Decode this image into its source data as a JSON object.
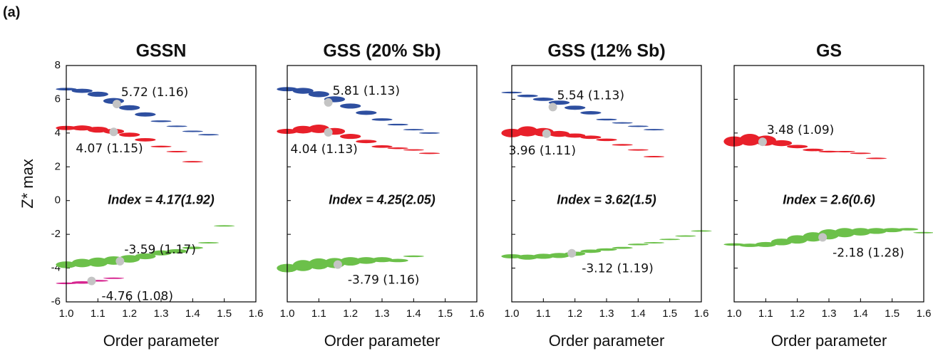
{
  "panel_label": "(a)",
  "chart_data": [
    {
      "type": "band",
      "title": "GSSN",
      "xlabel": "Order parameter",
      "ylabel": "Z* max",
      "annotation": "Index = 4.17(1.92)",
      "xlim": [
        1.0,
        1.6
      ],
      "ylim": [
        -6,
        8
      ],
      "yticklabels": true,
      "xticks": [
        {
          "value": 1.0,
          "label": "1.0"
        },
        {
          "value": 1.1,
          "label": "1.1"
        },
        {
          "value": 1.2,
          "label": "1.2"
        },
        {
          "value": 1.3,
          "label": "1.3"
        },
        {
          "value": 1.4,
          "label": "1.4"
        },
        {
          "value": 1.5,
          "label": "1.5"
        },
        {
          "value": 1.6,
          "label": "1.6"
        }
      ],
      "yticks": [
        8,
        6,
        4,
        2,
        0,
        -2,
        -4,
        -6
      ],
      "series": [
        {
          "color": "#2e4fa0",
          "x": [
            1.0,
            1.05,
            1.1,
            1.15,
            1.2,
            1.25,
            1.3,
            1.35,
            1.4,
            1.45
          ],
          "values": [
            6.6,
            6.5,
            6.3,
            5.9,
            5.5,
            5.1,
            4.7,
            4.4,
            4.1,
            3.9
          ],
          "thickness": [
            0.15,
            0.25,
            0.3,
            0.35,
            0.3,
            0.25,
            0.1,
            0.08,
            0.06,
            0.05
          ],
          "mean_x": 1.16,
          "mean": 5.72,
          "mean_label": "5.72 (1.16)",
          "label_position": "above-right"
        },
        {
          "color": "#e8202a",
          "x": [
            1.0,
            1.05,
            1.1,
            1.15,
            1.2,
            1.25,
            1.3,
            1.35,
            1.4
          ],
          "values": [
            4.3,
            4.3,
            4.2,
            4.1,
            3.9,
            3.6,
            3.2,
            2.9,
            2.3
          ],
          "thickness": [
            0.25,
            0.3,
            0.35,
            0.3,
            0.25,
            0.2,
            0.1,
            0.08,
            0.06
          ],
          "mean_x": 1.15,
          "mean": 4.07,
          "mean_label": "4.07 (1.15)",
          "label_position": "below-left"
        },
        {
          "color": "#6cc04a",
          "x": [
            1.0,
            1.05,
            1.1,
            1.15,
            1.2,
            1.25,
            1.3,
            1.35,
            1.4,
            1.45,
            1.5
          ],
          "values": [
            -3.8,
            -3.7,
            -3.65,
            -3.55,
            -3.45,
            -3.3,
            -3.1,
            -3.0,
            -2.8,
            -2.5,
            -1.5
          ],
          "thickness": [
            0.4,
            0.5,
            0.55,
            0.5,
            0.45,
            0.35,
            0.3,
            0.25,
            0.15,
            0.08,
            0.05
          ],
          "mean_x": 1.17,
          "mean": -3.59,
          "mean_label": "-3.59 (1.17)",
          "label_position": "above-right"
        },
        {
          "color": "#d6248f",
          "x": [
            1.0,
            1.05,
            1.1,
            1.15
          ],
          "values": [
            -4.9,
            -4.85,
            -4.75,
            -4.6
          ],
          "thickness": [
            0.1,
            0.15,
            0.1,
            0.05
          ],
          "mean_x": 1.08,
          "mean": -4.76,
          "mean_label": "-4.76 (1.08)",
          "label_position": "below-right"
        }
      ]
    },
    {
      "type": "band",
      "title": "GSS (20% Sb)",
      "xlabel": "Order parameter",
      "annotation": "Index = 4.25(2.05)",
      "xlim": [
        1.0,
        1.6
      ],
      "ylim": [
        -6,
        8
      ],
      "yticklabels": false,
      "xticks": [
        {
          "value": 1.0,
          "label": "1.0"
        },
        {
          "value": 1.1,
          "label": "1.1"
        },
        {
          "value": 1.2,
          "label": "1.2"
        },
        {
          "value": 1.3,
          "label": "1.3"
        },
        {
          "value": 1.4,
          "label": "1.4"
        },
        {
          "value": 1.5,
          "label": "1.5"
        },
        {
          "value": 1.6,
          "label": "1.6"
        }
      ],
      "yticks": [
        8,
        6,
        4,
        2,
        0,
        -2,
        -4,
        -6
      ],
      "series": [
        {
          "color": "#2e4fa0",
          "x": [
            1.0,
            1.05,
            1.1,
            1.15,
            1.2,
            1.25,
            1.3,
            1.35,
            1.4,
            1.45
          ],
          "values": [
            6.6,
            6.5,
            6.3,
            6.0,
            5.6,
            5.2,
            4.8,
            4.5,
            4.2,
            4.0
          ],
          "thickness": [
            0.25,
            0.35,
            0.35,
            0.35,
            0.3,
            0.25,
            0.15,
            0.1,
            0.06,
            0.05
          ],
          "mean_x": 1.13,
          "mean": 5.81,
          "mean_label": "5.81 (1.13)",
          "label_position": "above-right"
        },
        {
          "color": "#e8202a",
          "x": [
            1.0,
            1.05,
            1.1,
            1.15,
            1.2,
            1.25,
            1.3,
            1.35,
            1.4,
            1.45
          ],
          "values": [
            4.1,
            4.2,
            4.25,
            4.1,
            3.8,
            3.5,
            3.2,
            3.1,
            3.0,
            2.8
          ],
          "thickness": [
            0.3,
            0.45,
            0.5,
            0.4,
            0.3,
            0.2,
            0.15,
            0.1,
            0.08,
            0.05
          ],
          "mean_x": 1.13,
          "mean": 4.04,
          "mean_label": "4.04 (1.13)",
          "label_position": "below-left"
        },
        {
          "color": "#6cc04a",
          "x": [
            1.0,
            1.05,
            1.1,
            1.15,
            1.2,
            1.25,
            1.3,
            1.35,
            1.4
          ],
          "values": [
            -4.0,
            -3.85,
            -3.75,
            -3.7,
            -3.6,
            -3.55,
            -3.5,
            -3.55,
            -3.3
          ],
          "thickness": [
            0.5,
            0.65,
            0.65,
            0.6,
            0.5,
            0.4,
            0.3,
            0.2,
            0.1
          ],
          "mean_x": 1.16,
          "mean": -3.79,
          "mean_label": "-3.79 (1.16)",
          "label_position": "below-right"
        }
      ]
    },
    {
      "type": "band",
      "title": "GSS (12% Sb)",
      "xlabel": "Order parameter",
      "annotation": "Index = 3.62(1.5)",
      "xlim": [
        1.0,
        1.6
      ],
      "ylim": [
        -6,
        8
      ],
      "yticklabels": false,
      "xticks": [
        {
          "value": 1.0,
          "label": "1.0"
        },
        {
          "value": 1.1,
          "label": "1.1"
        },
        {
          "value": 1.2,
          "label": "1.2"
        },
        {
          "value": 1.3,
          "label": "1.3"
        },
        {
          "value": 1.4,
          "label": "1.4"
        },
        {
          "value": 1.5,
          "label": "1.5"
        },
        {
          "value": 1.6,
          "label": "1.6"
        }
      ],
      "yticks": [
        8,
        6,
        4,
        2,
        0,
        -2,
        -4,
        -6
      ],
      "series": [
        {
          "color": "#2e4fa0",
          "x": [
            1.0,
            1.05,
            1.1,
            1.15,
            1.2,
            1.25,
            1.3,
            1.35,
            1.4,
            1.45
          ],
          "values": [
            6.4,
            6.2,
            6.0,
            5.8,
            5.5,
            5.2,
            4.8,
            4.6,
            4.4,
            4.2
          ],
          "thickness": [
            0.1,
            0.15,
            0.2,
            0.25,
            0.25,
            0.2,
            0.1,
            0.08,
            0.06,
            0.05
          ],
          "mean_x": 1.13,
          "mean": 5.54,
          "mean_label": "5.54 (1.13)",
          "label_position": "above-right"
        },
        {
          "color": "#e8202a",
          "x": [
            1.0,
            1.05,
            1.1,
            1.15,
            1.2,
            1.25,
            1.3,
            1.35,
            1.4,
            1.45
          ],
          "values": [
            4.0,
            4.1,
            4.05,
            3.95,
            3.85,
            3.75,
            3.6,
            3.3,
            3.0,
            2.6
          ],
          "thickness": [
            0.5,
            0.6,
            0.5,
            0.35,
            0.25,
            0.2,
            0.15,
            0.1,
            0.08,
            0.05
          ],
          "mean_x": 1.11,
          "mean": 3.96,
          "mean_label": "3.96 (1.11)",
          "label_position": "below-left"
        },
        {
          "color": "#6cc04a",
          "x": [
            1.0,
            1.05,
            1.1,
            1.15,
            1.2,
            1.25,
            1.3,
            1.35,
            1.4,
            1.45,
            1.5,
            1.55,
            1.6
          ],
          "values": [
            -3.3,
            -3.35,
            -3.3,
            -3.25,
            -3.15,
            -3.0,
            -2.9,
            -2.8,
            -2.6,
            -2.5,
            -2.3,
            -2.1,
            -1.8
          ],
          "thickness": [
            0.25,
            0.3,
            0.3,
            0.3,
            0.25,
            0.2,
            0.15,
            0.12,
            0.1,
            0.08,
            0.06,
            0.05,
            0.04
          ],
          "mean_x": 1.19,
          "mean": -3.12,
          "mean_label": "-3.12 (1.19)",
          "label_position": "below-right"
        }
      ]
    },
    {
      "type": "band",
      "title": "GS",
      "xlabel": "Order parameter",
      "annotation": "Index = 2.6(0.6)",
      "xlim": [
        1.0,
        1.6
      ],
      "ylim": [
        -6,
        8
      ],
      "yticklabels": false,
      "xticks": [
        {
          "value": 1.0,
          "label": "1.0"
        },
        {
          "value": 1.1,
          "label": "1.1"
        },
        {
          "value": 1.2,
          "label": "1.2"
        },
        {
          "value": 1.3,
          "label": "1.3"
        },
        {
          "value": 1.4,
          "label": "1.4"
        },
        {
          "value": 1.5,
          "label": "1.5"
        },
        {
          "value": 1.6,
          "label": "1.6"
        }
      ],
      "yticks": [
        8,
        6,
        4,
        2,
        0,
        -2,
        -4,
        -6
      ],
      "series": [
        {
          "color": "#e8202a",
          "x": [
            1.0,
            1.05,
            1.1,
            1.15,
            1.2,
            1.25,
            1.3,
            1.35,
            1.4,
            1.45
          ],
          "values": [
            3.5,
            3.6,
            3.55,
            3.4,
            3.2,
            3.0,
            2.9,
            2.9,
            2.8,
            2.5
          ],
          "thickness": [
            0.6,
            0.7,
            0.6,
            0.35,
            0.2,
            0.15,
            0.1,
            0.08,
            0.06,
            0.05
          ],
          "mean_x": 1.09,
          "mean": 3.48,
          "mean_label": "3.48 (1.09)",
          "label_position": "above-right"
        },
        {
          "color": "#6cc04a",
          "x": [
            1.0,
            1.05,
            1.1,
            1.15,
            1.2,
            1.25,
            1.3,
            1.35,
            1.4,
            1.45,
            1.5,
            1.55,
            1.6
          ],
          "values": [
            -2.6,
            -2.65,
            -2.6,
            -2.45,
            -2.3,
            -2.15,
            -2.0,
            -1.9,
            -1.85,
            -1.8,
            -1.75,
            -1.7,
            -1.9
          ],
          "thickness": [
            0.15,
            0.2,
            0.3,
            0.4,
            0.5,
            0.55,
            0.6,
            0.55,
            0.45,
            0.35,
            0.25,
            0.15,
            0.08
          ],
          "mean_x": 1.28,
          "mean": -2.18,
          "mean_label": "-2.18 (1.28)",
          "label_position": "below-right"
        }
      ]
    }
  ]
}
